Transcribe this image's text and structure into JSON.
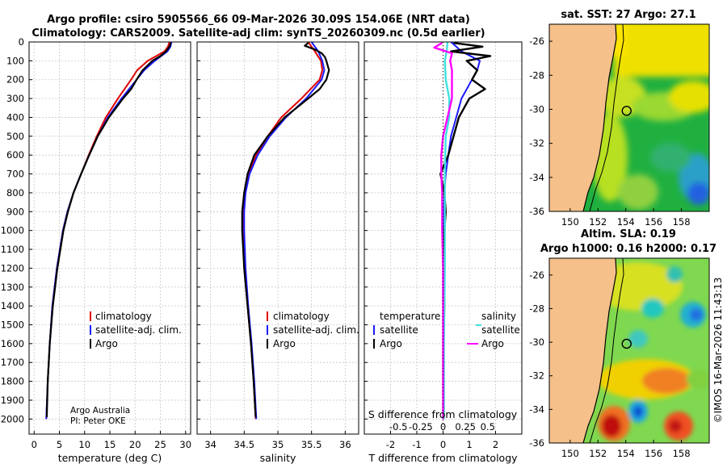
{
  "title_line1": "Argo profile: csiro 5905566_66 09-Mar-2026 30.09S 154.06E (NRT data)",
  "title_line2": "Climatology: CARS2009. Satellite-adj clim: synTS_20260309.nc (0.5d earlier)",
  "credit_line1": "Argo Australia",
  "credit_line2": "PI: Peter OKE",
  "watermark": "©IMOS 16-Mar-2026 11:43:13",
  "colors": {
    "climatology": "#e00000",
    "satellite_adj": "#1a1aff",
    "argo": "#000000",
    "sat_salinity": "#40e0e0",
    "argo_salinity": "#ff00ff",
    "land": "#f5c08a"
  },
  "chart_data": [
    {
      "type": "line",
      "id": "temperature",
      "xlabel": "temperature (deg C)",
      "ylabel": "",
      "xlim": [
        -1,
        31
      ],
      "ylim": [
        2080,
        0
      ],
      "xticks": [
        0,
        5,
        10,
        15,
        20,
        25,
        30
      ],
      "yticks": [
        0,
        100,
        200,
        300,
        400,
        500,
        600,
        700,
        800,
        900,
        1000,
        1100,
        1200,
        1300,
        1400,
        1500,
        1600,
        1700,
        1800,
        1900,
        2000
      ],
      "legend": [
        "climatology",
        "satellite-adj. clim.",
        "Argo"
      ],
      "series": [
        {
          "name": "climatology",
          "depth": [
            0,
            25,
            50,
            100,
            150,
            200,
            300,
            400,
            500,
            600,
            700,
            800,
            900,
            1000,
            1200,
            1400,
            1600,
            1800,
            2000
          ],
          "values": [
            26.8,
            26.5,
            25.8,
            22.5,
            20.4,
            19.2,
            16.6,
            14.2,
            12.4,
            10.8,
            9.3,
            7.8,
            6.6,
            5.7,
            4.5,
            3.6,
            3.1,
            2.7,
            2.4
          ]
        },
        {
          "name": "satellite-adj. clim.",
          "depth": [
            0,
            25,
            50,
            100,
            150,
            200,
            300,
            400,
            500,
            600,
            700,
            800,
            900,
            1000,
            1200,
            1400,
            1600,
            1800,
            2000
          ],
          "values": [
            27.2,
            27.0,
            26.4,
            23.9,
            21.8,
            20.3,
            17.3,
            14.6,
            12.6,
            10.9,
            9.3,
            7.8,
            6.6,
            5.7,
            4.5,
            3.6,
            3.1,
            2.7,
            2.4
          ]
        },
        {
          "name": "Argo",
          "depth": [
            5,
            25,
            50,
            75,
            100,
            150,
            200,
            250,
            300,
            400,
            500,
            600,
            700,
            800,
            900,
            1000,
            1200,
            1400,
            1600,
            1800,
            1990
          ],
          "values": [
            27.1,
            26.8,
            26.1,
            25.0,
            23.4,
            21.5,
            20.3,
            19.2,
            17.6,
            14.8,
            12.6,
            10.9,
            9.3,
            7.8,
            6.7,
            5.8,
            4.6,
            3.7,
            3.1,
            2.7,
            2.5
          ]
        }
      ]
    },
    {
      "type": "line",
      "id": "salinity",
      "xlabel": "salinity",
      "xlim": [
        33.8,
        36.2
      ],
      "ylim": [
        2080,
        0
      ],
      "xticks": [
        34,
        34.5,
        35,
        35.5,
        36
      ],
      "series": [
        {
          "name": "climatology",
          "depth": [
            0,
            25,
            50,
            100,
            150,
            200,
            300,
            400,
            500,
            600,
            700,
            800,
            900,
            1000,
            1200,
            1400,
            1600,
            1800,
            2000
          ],
          "values": [
            35.45,
            35.5,
            35.55,
            35.64,
            35.66,
            35.62,
            35.35,
            35.05,
            34.85,
            34.68,
            34.56,
            34.5,
            34.48,
            34.48,
            34.5,
            34.55,
            34.6,
            34.64,
            34.67
          ]
        },
        {
          "name": "satellite-adj. clim.",
          "depth": [
            0,
            25,
            50,
            100,
            150,
            200,
            300,
            400,
            500,
            600,
            700,
            800,
            900,
            1000,
            1200,
            1400,
            1600,
            1800,
            2000
          ],
          "values": [
            35.5,
            35.55,
            35.6,
            35.66,
            35.69,
            35.65,
            35.42,
            35.12,
            34.88,
            34.7,
            34.58,
            34.52,
            34.5,
            34.5,
            34.52,
            34.56,
            34.61,
            34.65,
            34.68
          ]
        },
        {
          "name": "Argo",
          "depth": [
            5,
            20,
            40,
            60,
            80,
            100,
            150,
            200,
            250,
            300,
            400,
            500,
            600,
            700,
            800,
            900,
            1000,
            1200,
            1400,
            1600,
            1800,
            1990
          ],
          "values": [
            35.45,
            35.4,
            35.55,
            35.65,
            35.7,
            35.72,
            35.76,
            35.72,
            35.62,
            35.45,
            35.1,
            34.85,
            34.65,
            34.55,
            34.5,
            34.47,
            34.47,
            34.5,
            34.55,
            34.6,
            34.64,
            34.67
          ]
        }
      ]
    },
    {
      "type": "line",
      "id": "difference",
      "xlabel": "T difference from climatology",
      "xlabel_top": "S difference from climatology",
      "xlim": [
        -3,
        3
      ],
      "ylim": [
        2080,
        0
      ],
      "xticks": [
        -2,
        -1,
        0,
        1,
        2
      ],
      "xtick_labels": [
        "-2",
        "-1",
        "0",
        "1",
        "2"
      ],
      "sticks": [
        -0.5,
        -0.25,
        0,
        0.25,
        0.5
      ],
      "stick_labels": [
        "-0.5",
        "-0.25",
        "0",
        "0.25",
        "0.5"
      ],
      "legend_temperature_title": "temperature",
      "legend_salinity_title": "salinity",
      "legend": [
        "satellite",
        "Argo",
        "satellite",
        "Argo"
      ],
      "series": [
        {
          "name": "T satellite",
          "depth": [
            0,
            25,
            50,
            100,
            150,
            200,
            300,
            400,
            500,
            600,
            700,
            800,
            900,
            1000,
            1200,
            1400,
            1600,
            1800,
            2000
          ],
          "values": [
            0.3,
            0.5,
            0.7,
            1.4,
            1.3,
            1.1,
            0.7,
            0.5,
            0.3,
            0.2,
            0.1,
            0.05,
            0.03,
            0.02,
            0.01,
            0.0,
            0.0,
            0.0,
            0.0
          ]
        },
        {
          "name": "T Argo",
          "depth": [
            5,
            25,
            50,
            75,
            100,
            150,
            200,
            250,
            300,
            350,
            400,
            500,
            600,
            700,
            800,
            900,
            1000,
            1200,
            1400,
            1600,
            1800,
            1990
          ],
          "values": [
            0.4,
            1.5,
            0.3,
            1.8,
            0.9,
            1.3,
            1.1,
            1.6,
            1.0,
            0.8,
            0.6,
            0.4,
            0.2,
            -0.1,
            0.05,
            0.1,
            0.05,
            0.05,
            0.05,
            0.02,
            0.02,
            0.02
          ]
        },
        {
          "name": "S satellite",
          "depth": [
            0,
            50,
            100,
            200,
            300,
            400,
            500,
            700,
            900,
            1200,
            1600,
            2000
          ],
          "values": [
            0.05,
            0.04,
            0.02,
            0.03,
            0.07,
            0.07,
            0.03,
            0.02,
            0.02,
            0.02,
            0.01,
            0.01
          ]
        },
        {
          "name": "S Argo",
          "depth": [
            5,
            30,
            60,
            100,
            150,
            200,
            250,
            300,
            400,
            500,
            600,
            700,
            800,
            900,
            1000,
            1200,
            1600,
            2000
          ],
          "values": [
            -0.01,
            -0.1,
            0.1,
            0.08,
            0.1,
            0.1,
            0.1,
            0.1,
            0.05,
            0.0,
            -0.02,
            -0.02,
            -0.01,
            -0.01,
            -0.01,
            0.0,
            0.0,
            0.0
          ]
        }
      ]
    },
    {
      "type": "heatmap",
      "id": "sat_sst",
      "title": "sat. SST: 27 Argo: 27.1",
      "xlim": [
        148.5,
        160
      ],
      "ylim": [
        -36,
        -25
      ],
      "xticks": [
        150,
        152,
        154,
        156,
        158
      ],
      "yticks": [
        -26,
        -28,
        -30,
        -32,
        -34,
        -36
      ],
      "float_position": [
        154.06,
        -30.09
      ]
    },
    {
      "type": "heatmap",
      "id": "altim_sla",
      "title_line1": "Altim. SLA: 0.19",
      "title_line2": "Argo h1000: 0.16 h2000: 0.17",
      "xlim": [
        148.5,
        160
      ],
      "ylim": [
        -36,
        -25
      ],
      "xticks": [
        150,
        152,
        154,
        156,
        158
      ],
      "yticks": [
        -26,
        -28,
        -30,
        -32,
        -34,
        -36
      ],
      "float_position": [
        154.06,
        -30.09
      ]
    }
  ]
}
